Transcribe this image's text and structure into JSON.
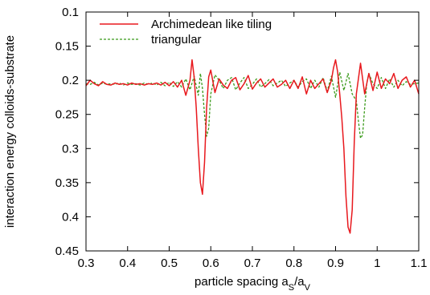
{
  "chart_data": {
    "type": "line",
    "title": "",
    "xlabel": "particle spacing a",
    "xlabel_sub1": "S",
    "xlabel_sep": "/a",
    "xlabel_sub2": "V",
    "ylabel": "interaction energy colloids-substrate",
    "xlim": [
      0.3,
      1.1
    ],
    "ylim": [
      0.1,
      0.45
    ],
    "y_inverted": true,
    "x_ticks": [
      0.3,
      0.4,
      0.5,
      0.6,
      0.7,
      0.8,
      0.9,
      1.0,
      1.1
    ],
    "x_tick_labels": [
      "0.3",
      "0.4",
      "0.5",
      "0.6",
      "0.7",
      "0.8",
      "0.9",
      "1",
      "1.1"
    ],
    "y_ticks": [
      0.1,
      0.15,
      0.2,
      0.25,
      0.3,
      0.35,
      0.4,
      0.45
    ],
    "y_tick_labels": [
      "0.1",
      "0.15",
      "0.2",
      "0.25",
      "0.3",
      "0.35",
      "0.4",
      "0.45"
    ],
    "grid": false,
    "legend_position": "top-left",
    "series": [
      {
        "name": "Archimedean like tiling",
        "color": "#e8191e",
        "style": "solid",
        "x": [
          0.3,
          0.31,
          0.32,
          0.33,
          0.34,
          0.35,
          0.36,
          0.37,
          0.38,
          0.39,
          0.4,
          0.41,
          0.42,
          0.43,
          0.44,
          0.45,
          0.46,
          0.47,
          0.48,
          0.49,
          0.5,
          0.51,
          0.52,
          0.53,
          0.54,
          0.55,
          0.555,
          0.56,
          0.565,
          0.57,
          0.575,
          0.58,
          0.585,
          0.59,
          0.595,
          0.6,
          0.61,
          0.62,
          0.63,
          0.64,
          0.65,
          0.66,
          0.67,
          0.68,
          0.69,
          0.7,
          0.71,
          0.72,
          0.73,
          0.74,
          0.75,
          0.76,
          0.77,
          0.78,
          0.79,
          0.8,
          0.81,
          0.82,
          0.83,
          0.84,
          0.85,
          0.86,
          0.87,
          0.88,
          0.89,
          0.895,
          0.9,
          0.905,
          0.91,
          0.915,
          0.92,
          0.925,
          0.93,
          0.935,
          0.94,
          0.945,
          0.95,
          0.96,
          0.97,
          0.98,
          0.99,
          1.0,
          1.01,
          1.02,
          1.03,
          1.04,
          1.05,
          1.06,
          1.07,
          1.08,
          1.09,
          1.1
        ],
        "y": [
          0.208,
          0.2,
          0.205,
          0.208,
          0.202,
          0.206,
          0.207,
          0.204,
          0.206,
          0.205,
          0.207,
          0.204,
          0.206,
          0.205,
          0.207,
          0.205,
          0.206,
          0.204,
          0.207,
          0.203,
          0.208,
          0.202,
          0.21,
          0.2,
          0.222,
          0.2,
          0.17,
          0.195,
          0.24,
          0.3,
          0.35,
          0.367,
          0.32,
          0.24,
          0.195,
          0.185,
          0.218,
          0.198,
          0.207,
          0.212,
          0.2,
          0.196,
          0.214,
          0.205,
          0.193,
          0.213,
          0.204,
          0.198,
          0.21,
          0.204,
          0.198,
          0.21,
          0.206,
          0.2,
          0.212,
          0.2,
          0.212,
          0.195,
          0.22,
          0.2,
          0.212,
          0.205,
          0.198,
          0.218,
          0.2,
          0.182,
          0.17,
          0.188,
          0.22,
          0.255,
          0.3,
          0.37,
          0.415,
          0.424,
          0.39,
          0.29,
          0.22,
          0.175,
          0.22,
          0.19,
          0.215,
          0.188,
          0.212,
          0.198,
          0.205,
          0.19,
          0.212,
          0.2,
          0.195,
          0.21,
          0.2,
          0.22
        ]
      },
      {
        "name": "triangular",
        "color": "#3a9a1a",
        "style": "dashed",
        "x": [
          0.3,
          0.31,
          0.32,
          0.33,
          0.34,
          0.35,
          0.36,
          0.37,
          0.38,
          0.39,
          0.4,
          0.41,
          0.42,
          0.43,
          0.44,
          0.45,
          0.46,
          0.47,
          0.48,
          0.49,
          0.5,
          0.51,
          0.52,
          0.53,
          0.54,
          0.55,
          0.56,
          0.57,
          0.575,
          0.58,
          0.585,
          0.59,
          0.595,
          0.6,
          0.61,
          0.62,
          0.63,
          0.64,
          0.65,
          0.66,
          0.67,
          0.68,
          0.69,
          0.7,
          0.71,
          0.72,
          0.73,
          0.74,
          0.75,
          0.76,
          0.77,
          0.78,
          0.79,
          0.8,
          0.81,
          0.82,
          0.83,
          0.84,
          0.85,
          0.86,
          0.87,
          0.88,
          0.89,
          0.9,
          0.91,
          0.92,
          0.93,
          0.94,
          0.95,
          0.955,
          0.96,
          0.965,
          0.97,
          0.975,
          0.98,
          0.99,
          1.0,
          1.01,
          1.02,
          1.03,
          1.04,
          1.05,
          1.06,
          1.07,
          1.08,
          1.09,
          1.1
        ],
        "y": [
          0.205,
          0.206,
          0.203,
          0.207,
          0.204,
          0.206,
          0.205,
          0.206,
          0.204,
          0.207,
          0.204,
          0.206,
          0.205,
          0.207,
          0.204,
          0.206,
          0.204,
          0.207,
          0.203,
          0.208,
          0.203,
          0.209,
          0.202,
          0.21,
          0.198,
          0.214,
          0.194,
          0.222,
          0.19,
          0.212,
          0.25,
          0.282,
          0.27,
          0.22,
          0.192,
          0.2,
          0.212,
          0.2,
          0.196,
          0.214,
          0.204,
          0.196,
          0.212,
          0.206,
          0.198,
          0.21,
          0.205,
          0.199,
          0.208,
          0.204,
          0.2,
          0.209,
          0.204,
          0.2,
          0.21,
          0.202,
          0.198,
          0.212,
          0.2,
          0.21,
          0.196,
          0.216,
          0.194,
          0.225,
          0.188,
          0.215,
          0.19,
          0.22,
          0.23,
          0.26,
          0.285,
          0.28,
          0.24,
          0.205,
          0.19,
          0.205,
          0.212,
          0.196,
          0.212,
          0.198,
          0.21,
          0.2,
          0.208,
          0.202,
          0.206,
          0.205,
          0.204
        ]
      }
    ]
  }
}
